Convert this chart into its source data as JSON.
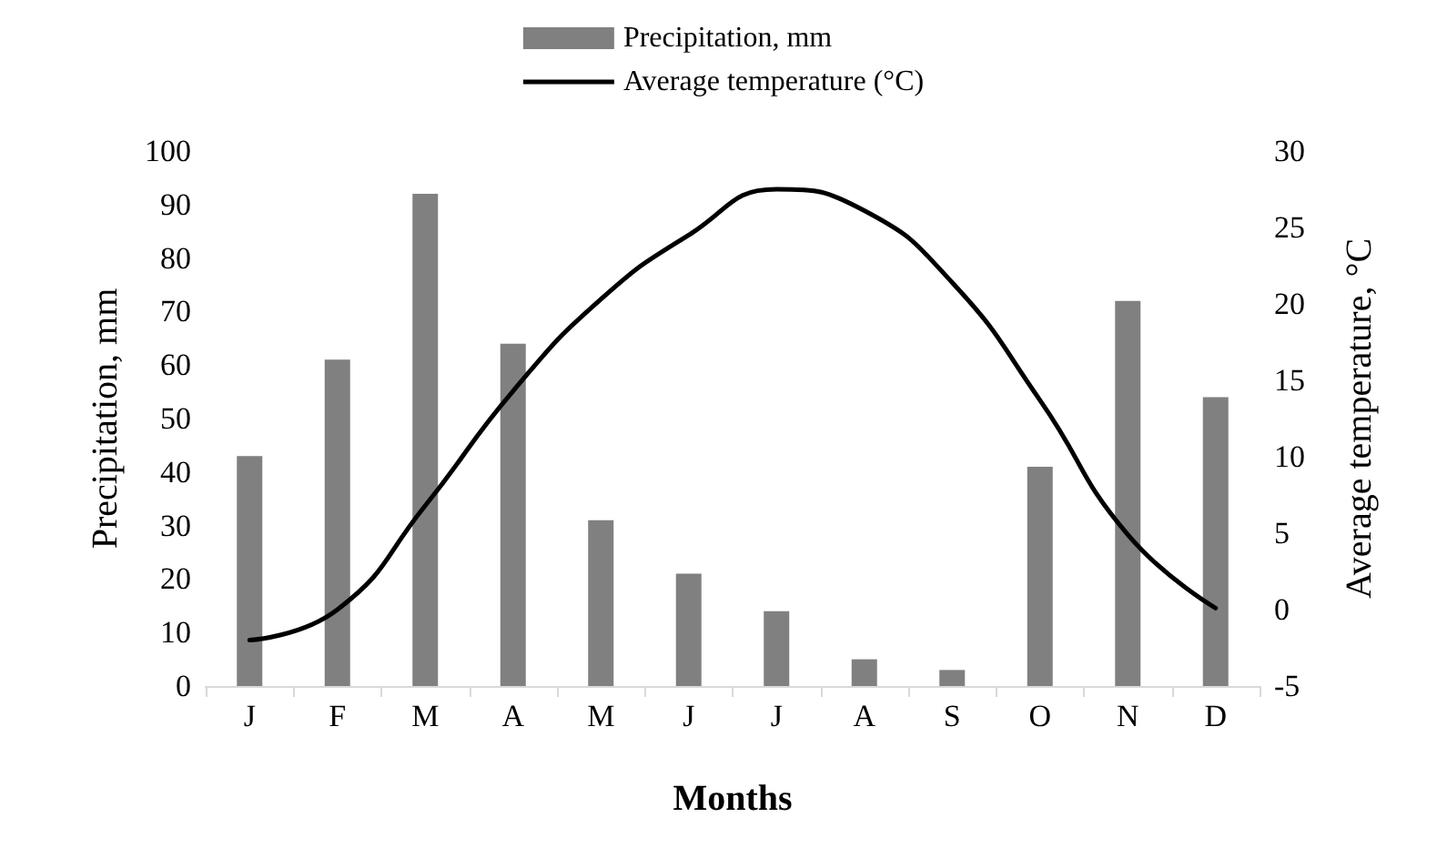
{
  "chart_data": {
    "type": "bar",
    "xlabel": "Months",
    "ylabel": "Precipitation, mm",
    "y2label": "Average temperature, °C",
    "categories": [
      "J",
      "F",
      "M",
      "A",
      "M",
      "J",
      "J",
      "A",
      "S",
      "O",
      "N",
      "D"
    ],
    "series": [
      {
        "name": "Precipitation, mm",
        "color": "#808080",
        "values": [
          43,
          61,
          92,
          64,
          31,
          21,
          14,
          5,
          3,
          41,
          72,
          54
        ]
      },
      {
        "name": "Average temperature (°C)",
        "type": "line",
        "axis": "y2",
        "color": "#000000",
        "values": [
          -2,
          0,
          6.8,
          14.3,
          20.3,
          24.5,
          27.5,
          26.1,
          21.4,
          13.7,
          4.9,
          0.1
        ]
      }
    ],
    "ylim": [
      0,
      100
    ],
    "yticks": [
      0,
      10,
      20,
      30,
      40,
      50,
      60,
      70,
      80,
      90,
      100
    ],
    "y2lim": [
      -5,
      30
    ],
    "y2ticks": [
      -5,
      0,
      5,
      10,
      15,
      20,
      25,
      30
    ],
    "grid": false,
    "legend": "top",
    "marker": "none",
    "line_style": "solid"
  }
}
